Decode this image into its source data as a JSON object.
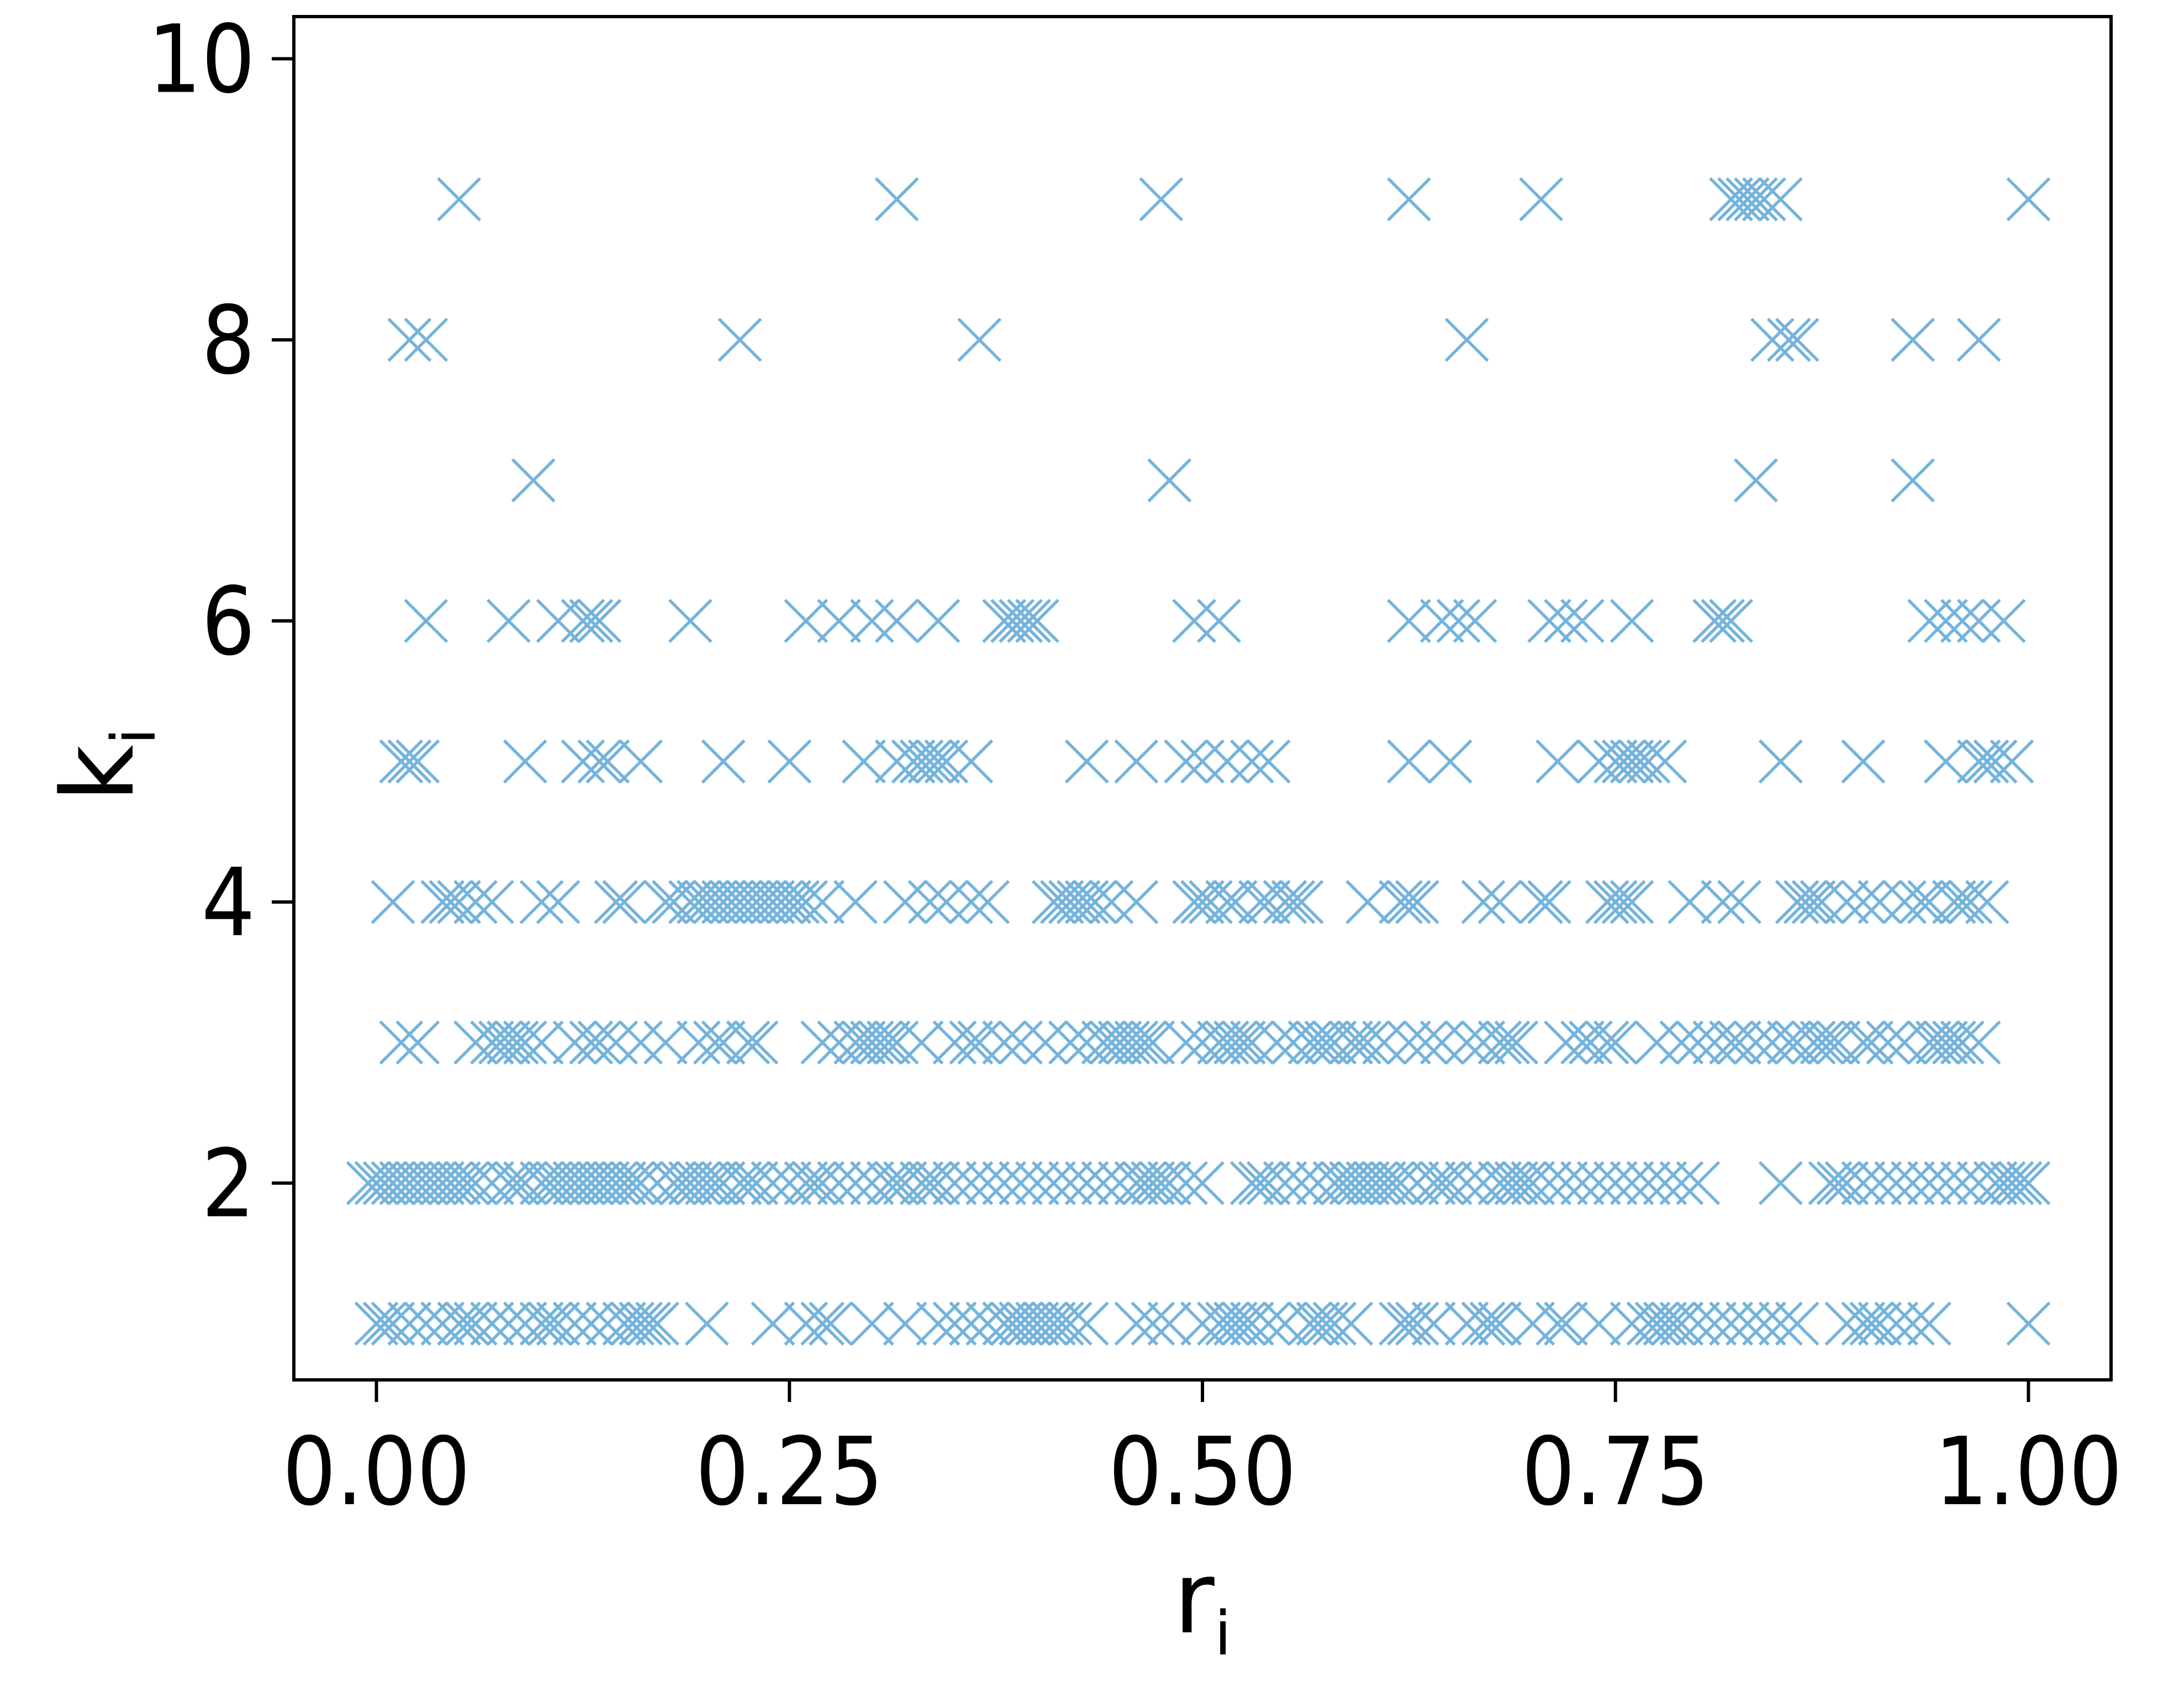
{
  "chart_data": {
    "type": "scatter",
    "marker": "x",
    "marker_color": "#74b3dc",
    "xlabel": "r",
    "xlabel_subscript": "i",
    "ylabel": "k",
    "ylabel_subscript": "i",
    "xlim": [
      -0.05,
      1.05
    ],
    "ylim": [
      0.6,
      10.3
    ],
    "xticks": [
      0.0,
      0.25,
      0.5,
      0.75,
      1.0
    ],
    "xtick_labels": [
      "0.00",
      "0.25",
      "0.50",
      "0.75",
      "1.00"
    ],
    "yticks": [
      2,
      4,
      6,
      8,
      10
    ],
    "ytick_labels": [
      "2",
      "4",
      "6",
      "8",
      "10"
    ],
    "grid": false,
    "legend": "none",
    "points": [
      {
        "k": 9,
        "r": [
          0.05,
          0.315,
          0.475,
          0.625,
          0.705,
          0.82,
          0.825,
          0.83,
          0.835,
          0.84,
          0.85,
          1.0
        ]
      },
      {
        "k": 8,
        "r": [
          0.02,
          0.03,
          0.22,
          0.365,
          0.66,
          0.845,
          0.855,
          0.86,
          0.93,
          0.97
        ]
      },
      {
        "k": 7,
        "r": [
          0.095,
          0.48,
          0.835,
          0.93
        ]
      },
      {
        "k": 6,
        "r": [
          0.03,
          0.08,
          0.11,
          0.125,
          0.13,
          0.135,
          0.19,
          0.26,
          0.28,
          0.3,
          0.315,
          0.34,
          0.38,
          0.385,
          0.39,
          0.395,
          0.4,
          0.495,
          0.51,
          0.625,
          0.645,
          0.655,
          0.665,
          0.71,
          0.72,
          0.73,
          0.76,
          0.81,
          0.815,
          0.82,
          0.94,
          0.95,
          0.96,
          0.97,
          0.985
        ]
      },
      {
        "k": 5,
        "r": [
          0.015,
          0.02,
          0.025,
          0.09,
          0.125,
          0.135,
          0.14,
          0.16,
          0.21,
          0.25,
          0.295,
          0.315,
          0.325,
          0.33,
          0.335,
          0.34,
          0.345,
          0.36,
          0.43,
          0.46,
          0.49,
          0.5,
          0.515,
          0.53,
          0.54,
          0.625,
          0.65,
          0.715,
          0.74,
          0.75,
          0.755,
          0.76,
          0.765,
          0.77,
          0.78,
          0.85,
          0.9,
          0.95,
          0.97,
          0.975,
          0.98,
          0.99
        ]
      },
      {
        "k": 4,
        "r": [
          0.01,
          0.04,
          0.045,
          0.05,
          0.06,
          0.07,
          0.1,
          0.11,
          0.145,
          0.15,
          0.175,
          0.18,
          0.19,
          0.195,
          0.2,
          0.205,
          0.21,
          0.215,
          0.22,
          0.225,
          0.23,
          0.235,
          0.24,
          0.245,
          0.25,
          0.255,
          0.26,
          0.27,
          0.29,
          0.32,
          0.335,
          0.345,
          0.36,
          0.37,
          0.41,
          0.415,
          0.42,
          0.425,
          0.43,
          0.435,
          0.445,
          0.46,
          0.495,
          0.5,
          0.505,
          0.515,
          0.52,
          0.535,
          0.54,
          0.55,
          0.555,
          0.56,
          0.6,
          0.62,
          0.625,
          0.63,
          0.67,
          0.68,
          0.705,
          0.71,
          0.745,
          0.75,
          0.755,
          0.76,
          0.795,
          0.815,
          0.825,
          0.86,
          0.865,
          0.87,
          0.875,
          0.89,
          0.9,
          0.91,
          0.925,
          0.935,
          0.94,
          0.955,
          0.96,
          0.965,
          0.975
        ]
      },
      {
        "k": 3,
        "r": [
          0.015,
          0.025,
          0.06,
          0.07,
          0.075,
          0.08,
          0.085,
          0.09,
          0.1,
          0.12,
          0.13,
          0.135,
          0.145,
          0.16,
          0.175,
          0.195,
          0.205,
          0.21,
          0.225,
          0.23,
          0.27,
          0.28,
          0.29,
          0.295,
          0.3,
          0.305,
          0.31,
          0.315,
          0.33,
          0.35,
          0.36,
          0.365,
          0.38,
          0.39,
          0.405,
          0.42,
          0.43,
          0.44,
          0.445,
          0.45,
          0.455,
          0.46,
          0.465,
          0.47,
          0.49,
          0.5,
          0.51,
          0.515,
          0.52,
          0.525,
          0.53,
          0.545,
          0.555,
          0.565,
          0.57,
          0.575,
          0.58,
          0.59,
          0.595,
          0.6,
          0.61,
          0.625,
          0.635,
          0.645,
          0.66,
          0.67,
          0.68,
          0.685,
          0.69,
          0.72,
          0.73,
          0.735,
          0.745,
          0.75,
          0.775,
          0.79,
          0.8,
          0.81,
          0.82,
          0.825,
          0.835,
          0.845,
          0.855,
          0.86,
          0.87,
          0.875,
          0.88,
          0.885,
          0.9,
          0.905,
          0.915,
          0.925,
          0.94,
          0.945,
          0.95,
          0.955,
          0.96,
          0.97
        ]
      },
      {
        "k": 2,
        "r": [
          -0.005,
          0.0,
          0.005,
          0.01,
          0.015,
          0.02,
          0.025,
          0.03,
          0.035,
          0.04,
          0.045,
          0.05,
          0.055,
          0.06,
          0.07,
          0.08,
          0.085,
          0.09,
          0.1,
          0.105,
          0.11,
          0.115,
          0.12,
          0.125,
          0.13,
          0.135,
          0.14,
          0.145,
          0.15,
          0.155,
          0.16,
          0.17,
          0.18,
          0.185,
          0.19,
          0.195,
          0.2,
          0.205,
          0.21,
          0.22,
          0.225,
          0.23,
          0.24,
          0.25,
          0.26,
          0.265,
          0.27,
          0.28,
          0.29,
          0.3,
          0.31,
          0.315,
          0.32,
          0.33,
          0.335,
          0.34,
          0.35,
          0.36,
          0.37,
          0.38,
          0.39,
          0.4,
          0.41,
          0.42,
          0.43,
          0.44,
          0.45,
          0.46,
          0.465,
          0.47,
          0.475,
          0.48,
          0.49,
          0.5,
          0.53,
          0.535,
          0.54,
          0.55,
          0.56,
          0.57,
          0.58,
          0.585,
          0.59,
          0.595,
          0.6,
          0.605,
          0.61,
          0.615,
          0.62,
          0.63,
          0.64,
          0.645,
          0.65,
          0.66,
          0.67,
          0.68,
          0.685,
          0.69,
          0.695,
          0.7,
          0.71,
          0.72,
          0.73,
          0.74,
          0.75,
          0.76,
          0.77,
          0.78,
          0.79,
          0.8,
          0.85,
          0.88,
          0.885,
          0.89,
          0.9,
          0.91,
          0.92,
          0.93,
          0.94,
          0.95,
          0.96,
          0.97,
          0.98,
          0.985,
          0.99,
          0.995,
          1.0
        ]
      },
      {
        "k": 1,
        "r": [
          0.0,
          0.005,
          0.01,
          0.02,
          0.03,
          0.04,
          0.05,
          0.055,
          0.06,
          0.07,
          0.08,
          0.09,
          0.1,
          0.105,
          0.11,
          0.12,
          0.13,
          0.14,
          0.15,
          0.155,
          0.16,
          0.165,
          0.17,
          0.2,
          0.24,
          0.26,
          0.27,
          0.275,
          0.3,
          0.32,
          0.34,
          0.35,
          0.36,
          0.37,
          0.38,
          0.385,
          0.39,
          0.395,
          0.4,
          0.405,
          0.41,
          0.415,
          0.42,
          0.43,
          0.46,
          0.47,
          0.48,
          0.5,
          0.51,
          0.515,
          0.52,
          0.525,
          0.53,
          0.54,
          0.55,
          0.565,
          0.57,
          0.575,
          0.58,
          0.59,
          0.62,
          0.625,
          0.63,
          0.64,
          0.66,
          0.67,
          0.675,
          0.68,
          0.7,
          0.715,
          0.72,
          0.74,
          0.76,
          0.77,
          0.775,
          0.78,
          0.785,
          0.79,
          0.8,
          0.81,
          0.82,
          0.83,
          0.84,
          0.85,
          0.86,
          0.89,
          0.9,
          0.905,
          0.91,
          0.92,
          0.93,
          0.94,
          1.0
        ]
      }
    ]
  }
}
